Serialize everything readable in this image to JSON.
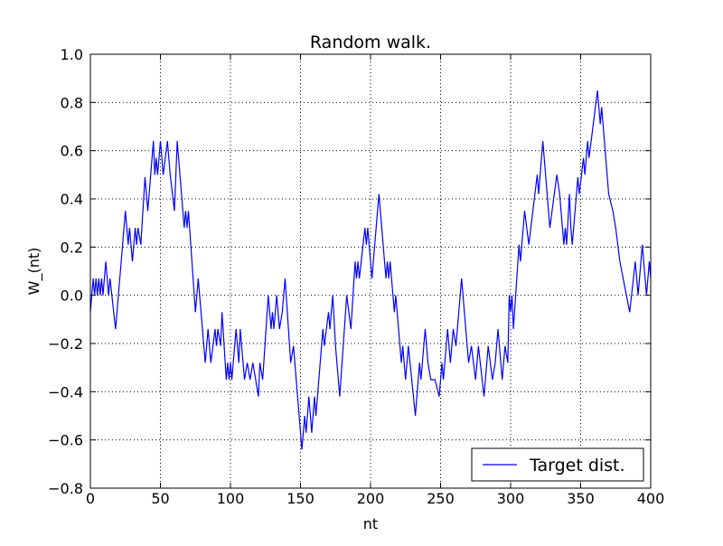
{
  "chart_data": {
    "type": "line",
    "title": "Random walk.",
    "xlabel": "nt",
    "ylabel": "W_(nt)",
    "xlim": [
      0,
      400
    ],
    "ylim": [
      -0.8,
      1.0
    ],
    "xticks": [
      0,
      50,
      100,
      150,
      200,
      250,
      300,
      350,
      400
    ],
    "yticks": [
      {
        "value": -0.8,
        "label": "−0.8"
      },
      {
        "value": -0.6,
        "label": "−0.6"
      },
      {
        "value": -0.4,
        "label": "−0.4"
      },
      {
        "value": -0.2,
        "label": "−0.2"
      },
      {
        "value": 0,
        "label": "0.0"
      },
      {
        "value": 0.2,
        "label": "0.2"
      },
      {
        "value": 0.4,
        "label": "0.4"
      },
      {
        "value": 0.6,
        "label": "0.6"
      },
      {
        "value": 0.8,
        "label": "0.8"
      },
      {
        "value": 1.0,
        "label": "1.0"
      }
    ],
    "grid": true,
    "legend": "lower right",
    "x": [
      0,
      2,
      3,
      4,
      5,
      6,
      7,
      8,
      9,
      11,
      13,
      14,
      18,
      25,
      27,
      28,
      30,
      32,
      33,
      34,
      36,
      39,
      41,
      45,
      46,
      47,
      48,
      50,
      52,
      55,
      57,
      60,
      62,
      67,
      68,
      69,
      70,
      75,
      77,
      82,
      84,
      86,
      89,
      90,
      91,
      93,
      94,
      97,
      98,
      99,
      100,
      101,
      104,
      106,
      107,
      110,
      112,
      114,
      116,
      118,
      120,
      121,
      123,
      127,
      129,
      130,
      131,
      133,
      135,
      137,
      139,
      143,
      145,
      151,
      152,
      153,
      154,
      156,
      158,
      160,
      161,
      166,
      167,
      170,
      171,
      173,
      175,
      178,
      183,
      186,
      189,
      190,
      191,
      192,
      196,
      197,
      198,
      200,
      201,
      206,
      211,
      212,
      213,
      214,
      217,
      218,
      219,
      222,
      223,
      225,
      227,
      232,
      235,
      236,
      239,
      241,
      243,
      246,
      249,
      251,
      252,
      255,
      257,
      259,
      261,
      265,
      267,
      270,
      272,
      275,
      277,
      281,
      284,
      287,
      289,
      291,
      294,
      296,
      298,
      299,
      300,
      301,
      302,
      306,
      307,
      310,
      313,
      319,
      320,
      323,
      328,
      333,
      335,
      337,
      338,
      339,
      340,
      342,
      343,
      344,
      348,
      349,
      352,
      353,
      355,
      356,
      362,
      364,
      365,
      370,
      373,
      375,
      378,
      385,
      389,
      391,
      394,
      397,
      399,
      400
    ],
    "series": [
      {
        "name": "Target dist.",
        "color": "#0000ff",
        "values": [
          -0.07,
          0.07,
          0,
          0.07,
          0,
          0.07,
          0,
          0.07,
          0,
          0.14,
          0,
          0.07,
          -0.14,
          0.35,
          0.21,
          0.28,
          0.14,
          0.28,
          0.21,
          0.28,
          0.21,
          0.49,
          0.35,
          0.64,
          0.5,
          0.57,
          0.5,
          0.64,
          0.5,
          0.64,
          0.5,
          0.35,
          0.64,
          0.28,
          0.35,
          0.28,
          0.35,
          -0.07,
          0.07,
          -0.28,
          -0.14,
          -0.28,
          -0.14,
          -0.21,
          -0.14,
          -0.21,
          -0.07,
          -0.35,
          -0.28,
          -0.35,
          -0.28,
          -0.35,
          -0.14,
          -0.28,
          -0.14,
          -0.35,
          -0.28,
          -0.35,
          -0.28,
          -0.35,
          -0.42,
          -0.28,
          -0.35,
          0,
          -0.14,
          -0.07,
          -0.14,
          0,
          -0.14,
          -0.07,
          0.07,
          -0.28,
          -0.21,
          -0.64,
          -0.57,
          -0.5,
          -0.57,
          -0.42,
          -0.57,
          -0.42,
          -0.5,
          -0.14,
          -0.21,
          -0.07,
          -0.14,
          0,
          -0.21,
          -0.42,
          0,
          -0.14,
          0.14,
          0.07,
          0.14,
          0.07,
          0.28,
          0.21,
          0.28,
          0.14,
          0.07,
          0.42,
          0.07,
          0.14,
          0.07,
          0.14,
          -0.07,
          0,
          -0.07,
          -0.28,
          -0.21,
          -0.35,
          -0.21,
          -0.5,
          -0.28,
          -0.35,
          -0.14,
          -0.28,
          -0.35,
          -0.35,
          -0.42,
          -0.28,
          -0.35,
          -0.14,
          -0.28,
          -0.14,
          -0.21,
          0.07,
          -0.07,
          -0.28,
          -0.21,
          -0.35,
          -0.21,
          -0.42,
          -0.21,
          -0.35,
          -0.28,
          -0.14,
          -0.35,
          -0.21,
          -0.28,
          0,
          -0.07,
          0,
          -0.14,
          0.21,
          0.14,
          0.35,
          0.21,
          0.5,
          0.42,
          0.64,
          0.28,
          0.5,
          0.42,
          0.28,
          0.21,
          0.28,
          0.21,
          0.42,
          0.28,
          0.21,
          0.49,
          0.42,
          0.57,
          0.5,
          0.64,
          0.57,
          0.85,
          0.71,
          0.78,
          0.42,
          0.35,
          0.28,
          0.14,
          -0.07,
          0.14,
          0,
          0.21,
          0,
          0.14,
          0.07
        ]
      }
    ]
  }
}
